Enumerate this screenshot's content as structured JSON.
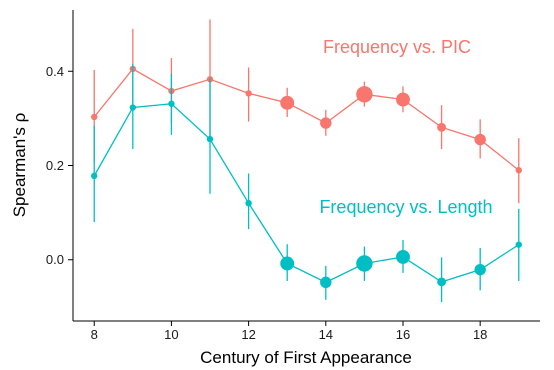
{
  "chart_data": {
    "type": "line",
    "xlabel": "Century of First Appearance",
    "ylabel": "Spearman's ρ",
    "x": [
      8,
      9,
      10,
      11,
      12,
      13,
      14,
      15,
      16,
      17,
      18,
      19
    ],
    "xlim": [
      7.45,
      19.55
    ],
    "ylim": [
      -0.13,
      0.53
    ],
    "xticks": [
      8,
      10,
      12,
      14,
      16,
      18
    ],
    "yticks": [
      0.0,
      0.2,
      0.4
    ],
    "ytick_labels": [
      "0.0",
      "0.2",
      "0.4"
    ],
    "grid": false,
    "legend": "none",
    "series": [
      {
        "name": "Frequency vs. PIC",
        "color": "#F8766D",
        "y": [
          0.303,
          0.405,
          0.358,
          0.383,
          0.353,
          0.333,
          0.29,
          0.351,
          0.34,
          0.281,
          0.255,
          0.19
        ],
        "lower": [
          0.205,
          0.32,
          0.29,
          0.255,
          0.293,
          0.303,
          0.263,
          0.325,
          0.313,
          0.235,
          0.215,
          0.12
        ],
        "upper": [
          0.403,
          0.49,
          0.428,
          0.51,
          0.408,
          0.365,
          0.318,
          0.378,
          0.368,
          0.328,
          0.298,
          0.258
        ],
        "point_weight": [
          2,
          2,
          2,
          2,
          2,
          5,
          4,
          6,
          5,
          3,
          4,
          2
        ]
      },
      {
        "name": "Frequency vs. Length",
        "color": "#00BFC4",
        "y": [
          0.178,
          0.323,
          0.331,
          0.256,
          0.12,
          -0.008,
          -0.048,
          -0.008,
          0.006,
          -0.047,
          -0.021,
          0.032
        ],
        "lower": [
          0.08,
          0.235,
          0.265,
          0.14,
          0.065,
          -0.045,
          -0.085,
          -0.045,
          -0.028,
          -0.09,
          -0.065,
          -0.045
        ],
        "upper": [
          0.285,
          0.415,
          0.395,
          0.385,
          0.183,
          0.033,
          -0.013,
          0.028,
          0.042,
          0.005,
          0.025,
          0.108
        ],
        "point_weight": [
          2,
          2,
          2,
          2,
          2,
          5,
          4,
          6,
          5,
          3,
          4,
          2
        ]
      }
    ],
    "annotations": [
      {
        "text": "Frequency vs. PIC",
        "series": 0
      },
      {
        "text": "Frequency vs. Length",
        "series": 1
      }
    ]
  }
}
